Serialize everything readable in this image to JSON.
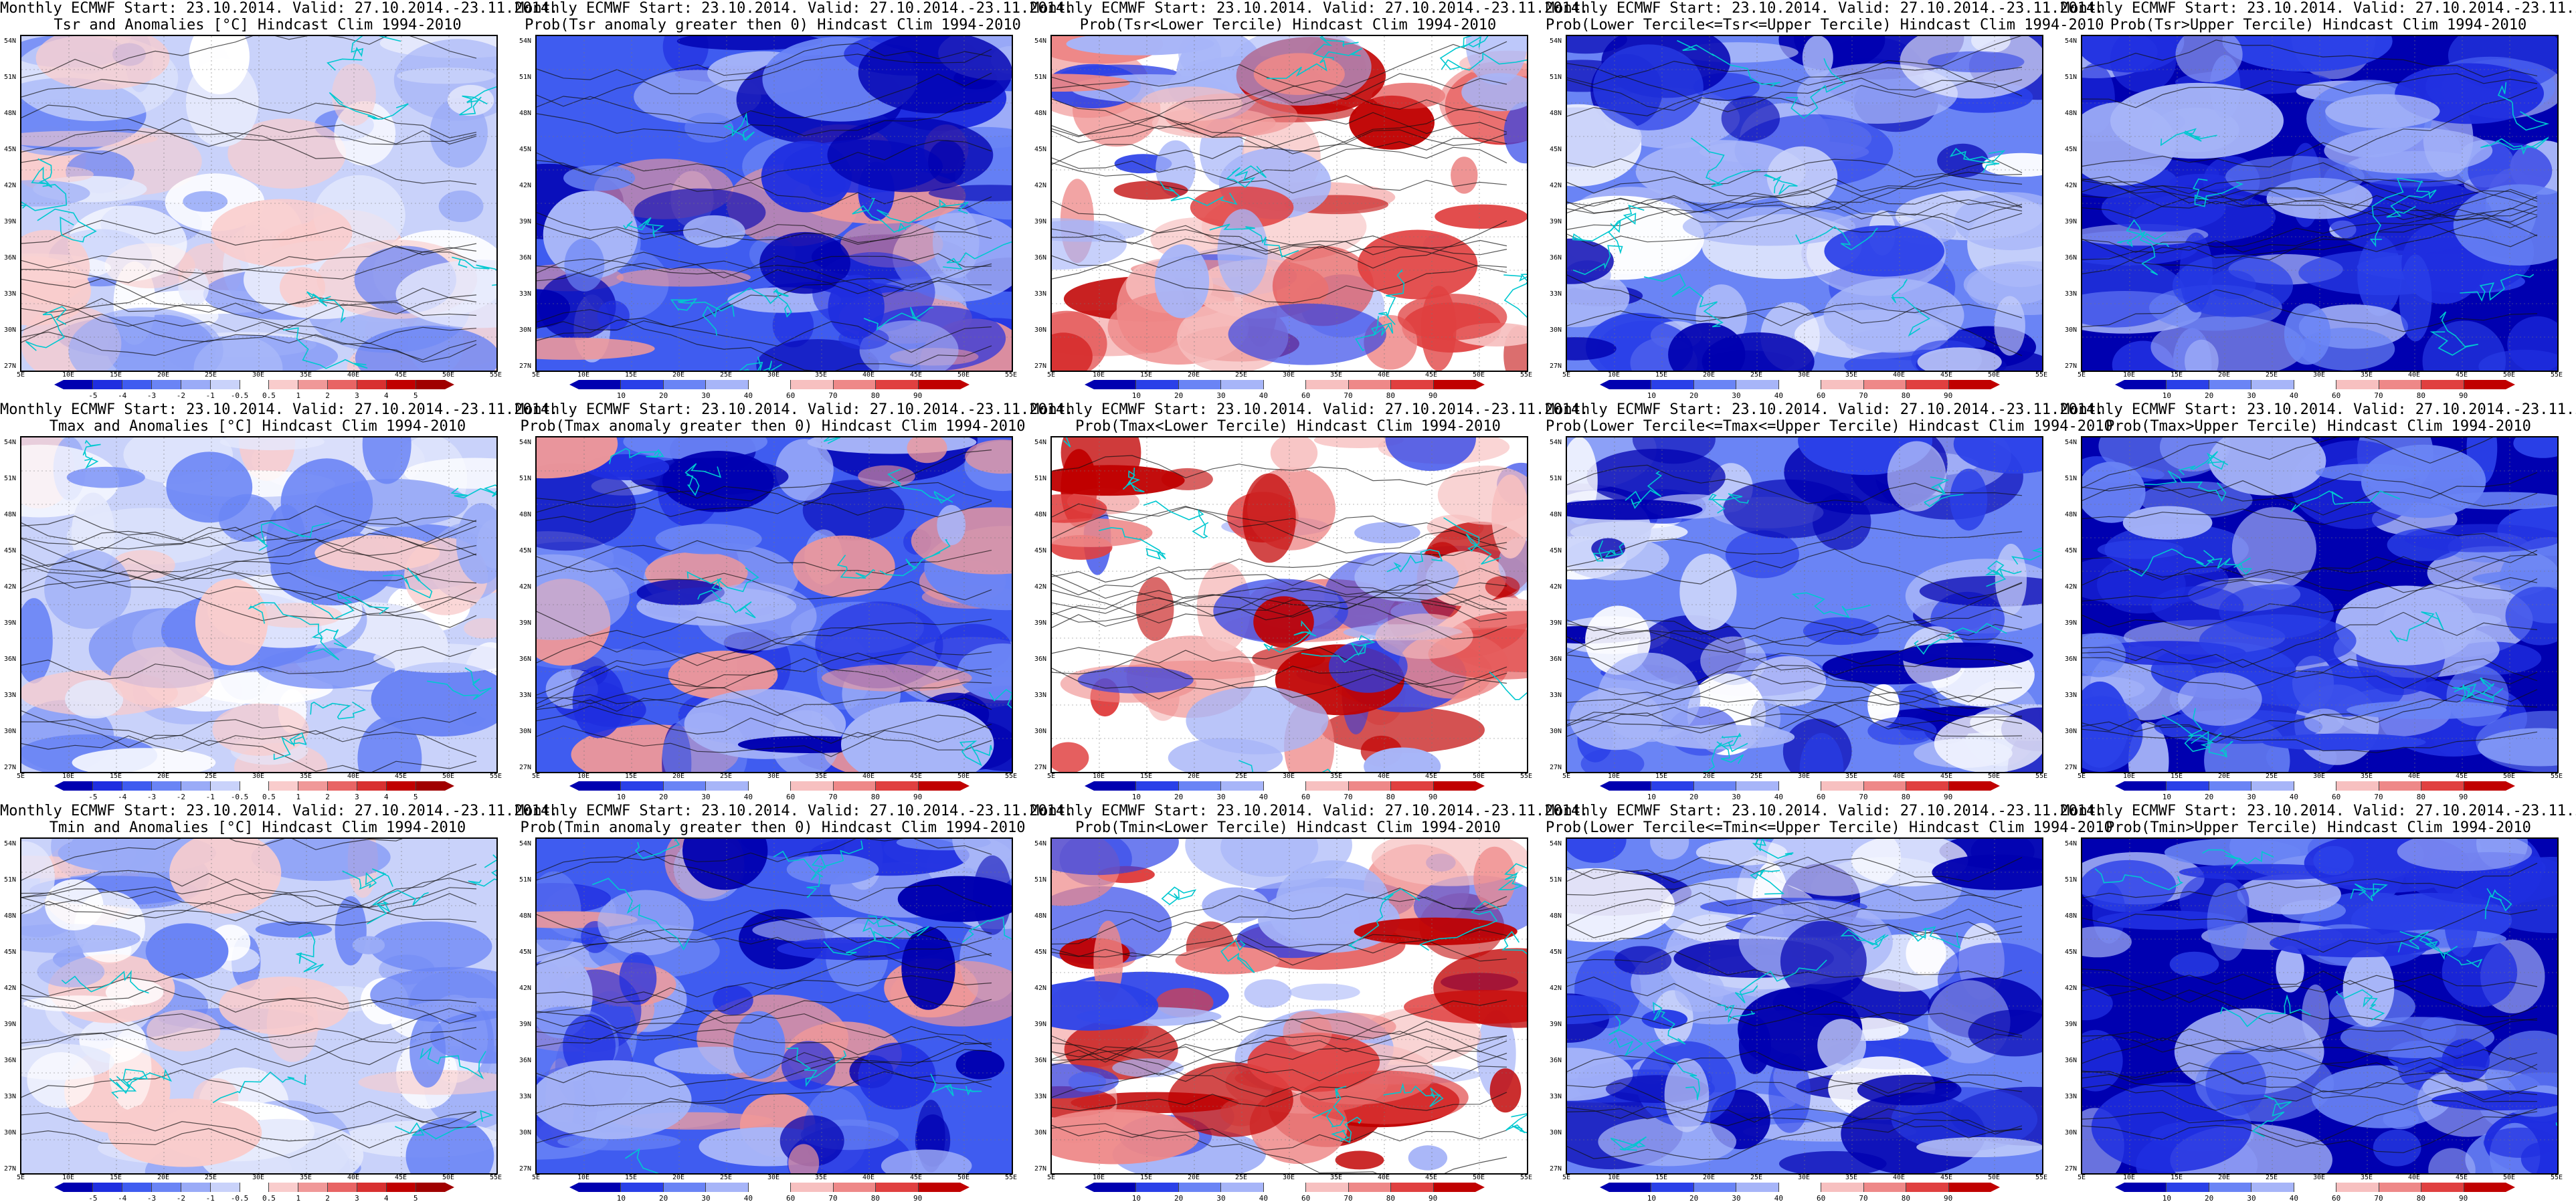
{
  "header_line": "Monthly ECMWF Start: 23.10.2014. Valid: 27.10.2014.-23.11.2014.",
  "lat_labels": [
    "54N",
    "51N",
    "48N",
    "45N",
    "42N",
    "39N",
    "36N",
    "33N",
    "30N",
    "27N"
  ],
  "lon_labels": [
    "5E",
    "10E",
    "15E",
    "20E",
    "25E",
    "30E",
    "35E",
    "40E",
    "45E",
    "50E",
    "55E"
  ],
  "anomaly_scale": {
    "ticks": [
      "-5",
      "-4",
      "-3",
      "-2",
      "-1",
      "-0.5",
      "0.5",
      "1",
      "2",
      "3",
      "4",
      "5"
    ],
    "colors": [
      "#0000b0",
      "#1f2ee0",
      "#3f5cf0",
      "#6a84f5",
      "#9aabf7",
      "#c9d2fa",
      "#ffffff",
      "#f9cccc",
      "#f09898",
      "#e86464",
      "#d83030",
      "#c00000",
      "#a00000"
    ]
  },
  "prob_scale": {
    "ticks": [
      "10",
      "20",
      "30",
      "40",
      "60",
      "70",
      "80",
      "90"
    ],
    "colors": [
      "#0000b0",
      "#2a40e8",
      "#6a84f5",
      "#a7b5f8",
      "#ffffff",
      "#f7c0c0",
      "#ee8888",
      "#e04040",
      "#c00000"
    ]
  },
  "rows": [
    {
      "variable": "Tsr",
      "panels": [
        {
          "subtitle": "Tsr and Anomalies [°C] Hindcast Clim 1994-2010",
          "scale": "anomaly",
          "tone": "light-blue"
        },
        {
          "subtitle": "Prob(Tsr anomaly greater then 0) Hindcast Clim 1994-2010",
          "scale": "prob",
          "tone": "deep-blue"
        },
        {
          "subtitle": "Prob(Tsr<Lower Tercile) Hindcast Clim 1994-2010",
          "scale": "prob",
          "tone": "red-mixed"
        },
        {
          "subtitle": "Prob(Lower Tercile<=Tsr<=Upper Tercile) Hindcast Clim 1994-2010",
          "scale": "prob",
          "tone": "mid-blue"
        },
        {
          "subtitle": "Prob(Tsr>Upper Tercile) Hindcast Clim 1994-2010",
          "scale": "prob",
          "tone": "navy"
        }
      ]
    },
    {
      "variable": "Tmax",
      "panels": [
        {
          "subtitle": "Tmax and Anomalies [°C] Hindcast Clim 1994-2010",
          "scale": "anomaly",
          "tone": "light-blue"
        },
        {
          "subtitle": "Prob(Tmax anomaly greater then 0) Hindcast Clim 1994-2010",
          "scale": "prob",
          "tone": "deep-blue"
        },
        {
          "subtitle": "Prob(Tmax<Lower Tercile) Hindcast Clim 1994-2010",
          "scale": "prob",
          "tone": "red-mixed"
        },
        {
          "subtitle": "Prob(Lower Tercile<=Tmax<=Upper Tercile) Hindcast Clim 1994-2010",
          "scale": "prob",
          "tone": "mid-blue"
        },
        {
          "subtitle": "Prob(Tmax>Upper Tercile) Hindcast Clim 1994-2010",
          "scale": "prob",
          "tone": "navy"
        }
      ]
    },
    {
      "variable": "Tmin",
      "panels": [
        {
          "subtitle": "Tmin and Anomalies [°C] Hindcast Clim 1994-2010",
          "scale": "anomaly",
          "tone": "light-blue"
        },
        {
          "subtitle": "Prob(Tmin anomaly greater then 0) Hindcast Clim 1994-2010",
          "scale": "prob",
          "tone": "deep-blue"
        },
        {
          "subtitle": "Prob(Tmin<Lower Tercile) Hindcast Clim 1994-2010",
          "scale": "prob",
          "tone": "red-mixed"
        },
        {
          "subtitle": "Prob(Lower Tercile<=Tmin<=Upper Tercile) Hindcast Clim 1994-2010",
          "scale": "prob",
          "tone": "mid-blue"
        },
        {
          "subtitle": "Prob(Tmin>Upper Tercile) Hindcast Clim 1994-2010",
          "scale": "prob",
          "tone": "navy"
        }
      ]
    }
  ]
}
